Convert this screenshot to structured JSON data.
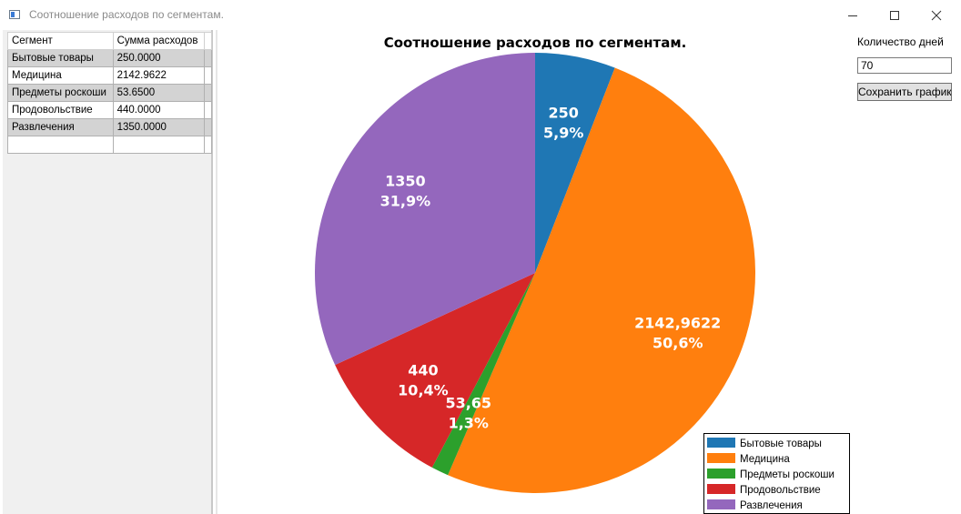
{
  "window": {
    "title": "Соотношение расходов по сегментам.",
    "icon": "window-app-icon",
    "controls": [
      "minimize-icon",
      "maximize-icon",
      "close-icon"
    ]
  },
  "table": {
    "columns": [
      "Сегмент",
      "Сумма расходов"
    ],
    "rows": [
      {
        "segment": "Бытовые товары",
        "amount": "250.0000"
      },
      {
        "segment": "Медицина",
        "amount": "2142.9622"
      },
      {
        "segment": "Предметы роскоши",
        "amount": "53.6500"
      },
      {
        "segment": "Продовольствие",
        "amount": "440.0000"
      },
      {
        "segment": "Развлечения",
        "amount": "1350.0000"
      }
    ]
  },
  "controls": {
    "days_label": "Количество дней",
    "days_value": "70",
    "save_label": "Сохранить график"
  },
  "chart_data": {
    "type": "pie",
    "title": "Соотношение расходов по сегментам.",
    "categories": [
      "Бытовые товары",
      "Медицина",
      "Предметы роскоши",
      "Продовольствие",
      "Развлечения"
    ],
    "values": [
      250,
      2142.9622,
      53.65,
      440,
      1350
    ],
    "value_labels": [
      "250",
      "2142,9622",
      "53,65",
      "440",
      "1350"
    ],
    "percent_labels": [
      "5,9%",
      "50,6%",
      "1,3%",
      "10,4%",
      "31,9%"
    ],
    "colors": [
      "#1f77b4",
      "#ff7f0e",
      "#2ca02c",
      "#d62728",
      "#9467bd"
    ],
    "legend_position": "bottom-right",
    "start": "top",
    "direction": "clockwise"
  }
}
